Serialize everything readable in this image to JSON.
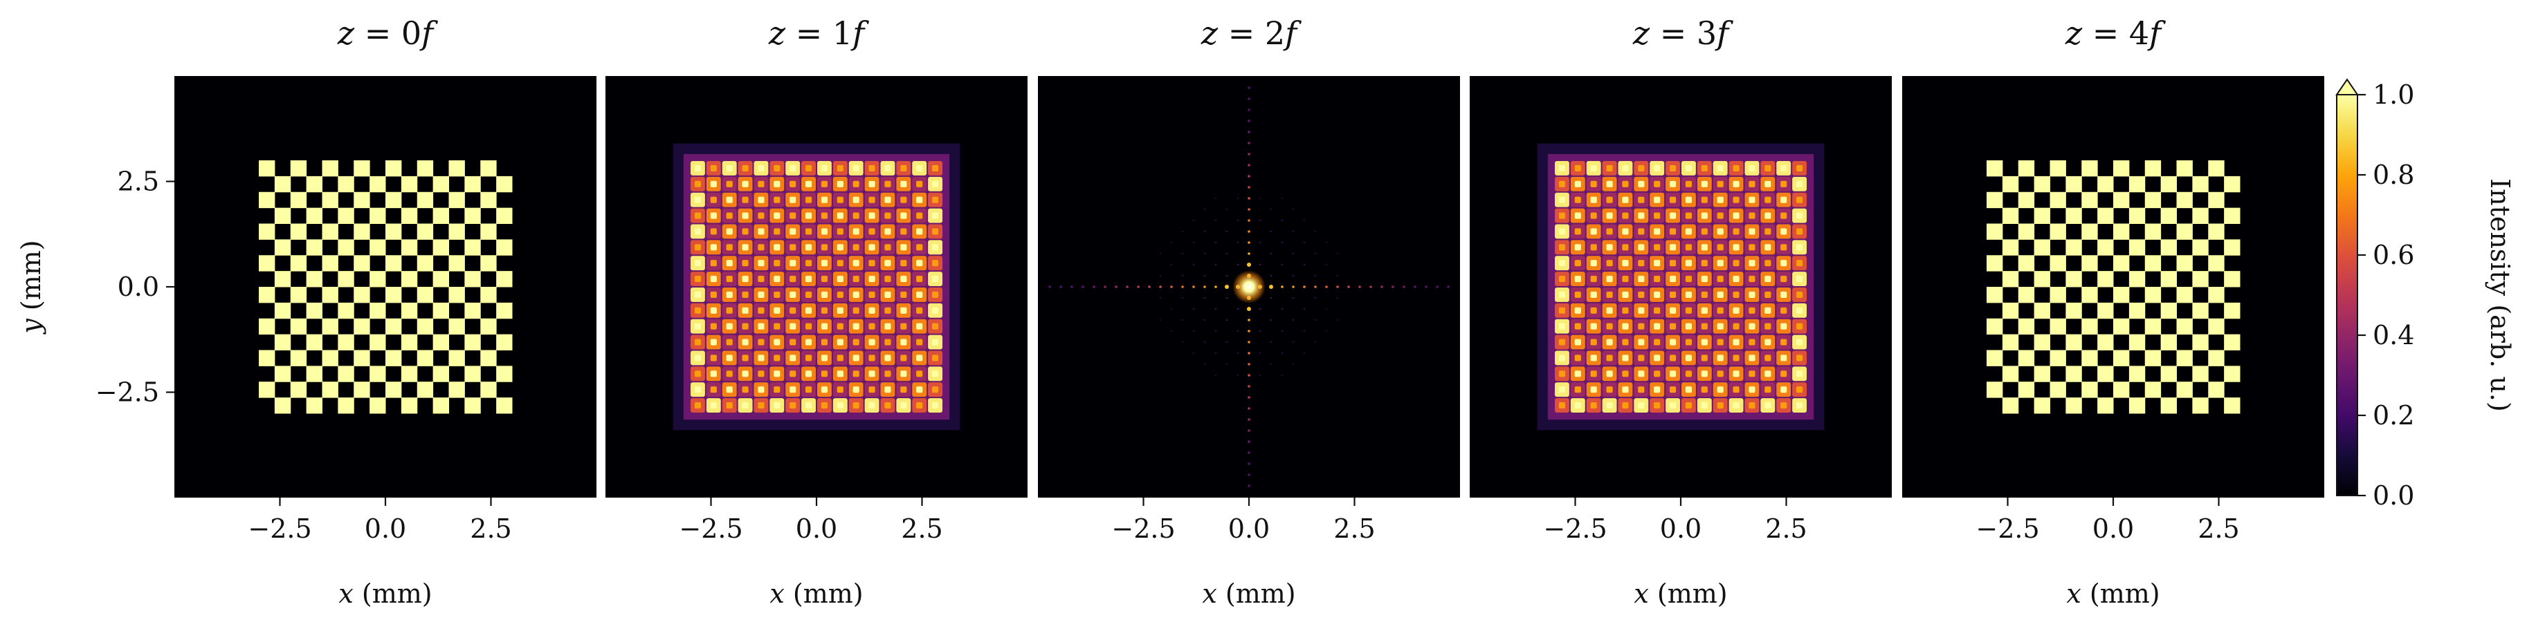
{
  "chart_data": {
    "type": "heatmap",
    "description_units": "mm",
    "colormap": "inferno",
    "panels": [
      {
        "title": "z = 0f",
        "title_var": "z",
        "title_eq": "= 0",
        "title_f": "f",
        "pattern": "checkerboard",
        "xlabel_var": "x",
        "xlabel_unit": "(mm)"
      },
      {
        "title": "z = 1f",
        "title_var": "z",
        "title_eq": "= 1",
        "title_f": "f",
        "pattern": "blurred-checkerboard",
        "xlabel_var": "x",
        "xlabel_unit": "(mm)"
      },
      {
        "title": "z = 2f",
        "title_var": "z",
        "title_eq": "= 2",
        "title_f": "f",
        "pattern": "fourier-spectrum",
        "xlabel_var": "x",
        "xlabel_unit": "(mm)"
      },
      {
        "title": "z = 3f",
        "title_var": "z",
        "title_eq": "= 3",
        "title_f": "f",
        "pattern": "blurred-checkerboard",
        "xlabel_var": "x",
        "xlabel_unit": "(mm)"
      },
      {
        "title": "z = 4f",
        "title_var": "z",
        "title_eq": "= 4",
        "title_f": "f",
        "pattern": "checkerboard",
        "xlabel_var": "x",
        "xlabel_unit": "(mm)"
      }
    ],
    "checkerboard": {
      "extent_mm": [
        -3.0,
        3.0
      ],
      "squares_per_side": 16
    },
    "xlim": [
      -5.0,
      5.0
    ],
    "ylim": [
      -5.0,
      5.0
    ],
    "x_ticks": [
      -2.5,
      0.0,
      2.5
    ],
    "x_tick_labels": [
      "−2.5",
      "0.0",
      "2.5"
    ],
    "y_ticks": [
      2.5,
      0.0,
      -2.5
    ],
    "y_tick_labels": [
      "2.5",
      "0.0",
      "−2.5"
    ],
    "ylabel_var": "y",
    "ylabel_unit": "(mm)",
    "colorbar": {
      "label": "Intensity (arb. u.)",
      "range": [
        0.0,
        1.0
      ],
      "ticks": [
        0.0,
        0.2,
        0.4,
        0.6,
        0.8,
        1.0
      ],
      "tick_labels": [
        "0.0",
        "0.2",
        "0.4",
        "0.6",
        "0.8",
        "1.0"
      ],
      "extend": "max"
    },
    "colors": {
      "background": "#000004",
      "bright": "#fcffa4",
      "orange": "#f98c0a",
      "magenta": "#bc3754",
      "purple": "#57106e"
    }
  }
}
